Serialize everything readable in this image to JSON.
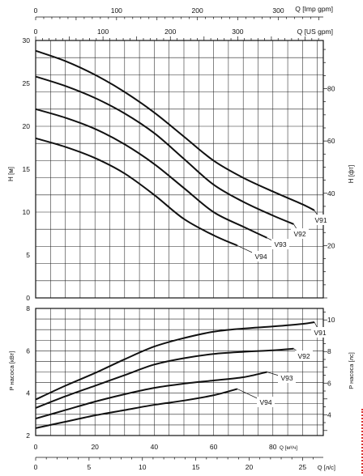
{
  "chart_data": [
    {
      "type": "line",
      "panel": "head",
      "xlabel": "Q [м³/ч]",
      "ylabel_left": "H [м]",
      "ylabel_right": "H [фт]",
      "xlim": [
        0,
        97
      ],
      "ylim": [
        0,
        30
      ],
      "yticks_left": [
        0,
        5,
        10,
        15,
        20,
        25,
        30
      ],
      "yticks_right": [
        20,
        40,
        60,
        80
      ],
      "grid": true,
      "series": [
        {
          "name": "V91",
          "x": [
            0,
            10,
            20,
            30,
            40,
            50,
            60,
            70,
            80,
            90,
            94
          ],
          "y": [
            28.8,
            27.6,
            26.0,
            24.0,
            21.6,
            18.8,
            16.0,
            14.0,
            12.4,
            10.9,
            10.2
          ]
        },
        {
          "name": "V92",
          "x": [
            0,
            10,
            20,
            30,
            40,
            50,
            60,
            70,
            80,
            87
          ],
          "y": [
            25.8,
            24.7,
            23.3,
            21.5,
            19.2,
            16.2,
            13.2,
            11.2,
            9.6,
            8.6
          ]
        },
        {
          "name": "V93",
          "x": [
            0,
            10,
            20,
            30,
            40,
            50,
            60,
            70,
            78
          ],
          "y": [
            22.0,
            21.0,
            19.7,
            17.9,
            15.6,
            12.8,
            10.0,
            8.3,
            7.0
          ]
        },
        {
          "name": "V94",
          "x": [
            0,
            10,
            20,
            30,
            40,
            50,
            60,
            68
          ],
          "y": [
            18.6,
            17.6,
            16.3,
            14.5,
            12.0,
            9.2,
            7.3,
            6.1
          ]
        }
      ]
    },
    {
      "type": "line",
      "panel": "power",
      "xlabel": "Q [м³/ч]",
      "ylabel_left": "P насоса [кВт]",
      "ylabel_right": "P насоса [лс]",
      "xlim": [
        0,
        97
      ],
      "ylim": [
        2,
        8
      ],
      "yticks_left": [
        2,
        4,
        6,
        8
      ],
      "yticks_right": [
        4,
        6,
        8,
        10
      ],
      "grid": true,
      "series": [
        {
          "name": "V91",
          "x": [
            0,
            10,
            20,
            30,
            40,
            50,
            60,
            70,
            80,
            90,
            94
          ],
          "y": [
            3.7,
            4.35,
            4.95,
            5.6,
            6.2,
            6.6,
            6.9,
            7.05,
            7.15,
            7.27,
            7.35
          ]
        },
        {
          "name": "V92",
          "x": [
            0,
            10,
            20,
            30,
            40,
            50,
            60,
            70,
            80,
            87
          ],
          "y": [
            3.3,
            3.85,
            4.35,
            4.85,
            5.35,
            5.65,
            5.85,
            5.95,
            6.02,
            6.1
          ]
        },
        {
          "name": "V93",
          "x": [
            0,
            10,
            20,
            30,
            40,
            50,
            60,
            70,
            78
          ],
          "y": [
            2.8,
            3.2,
            3.6,
            3.95,
            4.25,
            4.45,
            4.6,
            4.75,
            5.0
          ]
        },
        {
          "name": "V94",
          "x": [
            0,
            10,
            20,
            30,
            40,
            50,
            60,
            68
          ],
          "y": [
            2.35,
            2.65,
            2.95,
            3.2,
            3.45,
            3.65,
            3.9,
            4.2
          ]
        }
      ]
    }
  ],
  "axes_text": {
    "top_imp_label": "Q [Imp gpm]",
    "top_imp_ticks": [
      0,
      100,
      200,
      300
    ],
    "top_us_label": "Q [US gpm]",
    "top_us_ticks": [
      0,
      100,
      200,
      300
    ],
    "bottom_m3h_label": "Q [м³/ч]",
    "bottom_m3h_ticks": [
      0,
      20,
      40,
      60,
      80
    ],
    "bottom_ls_label": "Q [л/с]",
    "bottom_ls_ticks": [
      0,
      5,
      10,
      15,
      20,
      25
    ],
    "head_left_label": "H [м]",
    "head_right_label": "H [фт]",
    "power_left_label": "P насоса [кВт]",
    "power_right_label": "P насоса [лс]"
  }
}
